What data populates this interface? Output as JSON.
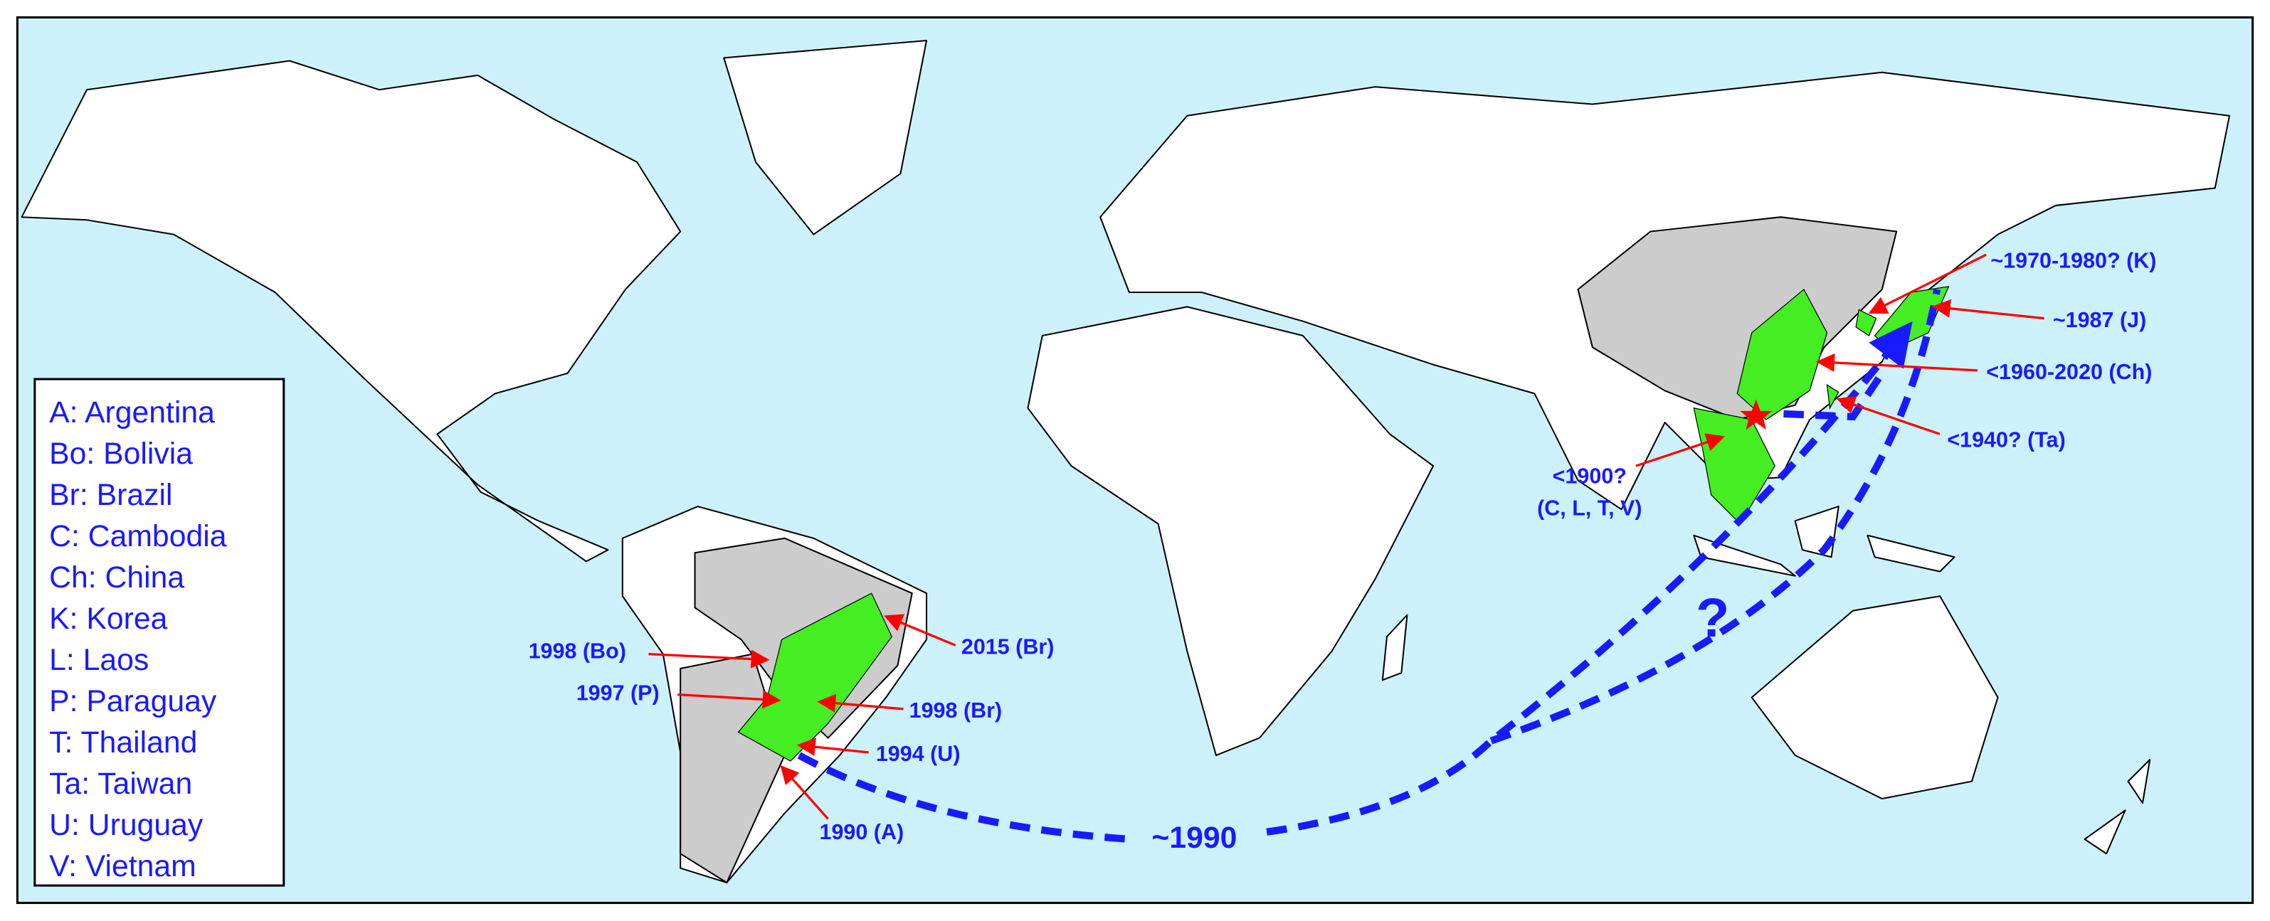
{
  "legend": [
    "A: Argentina",
    "Bo: Bolivia",
    "Br: Brazil",
    "C: Cambodia",
    "Ch: China",
    "K: Korea",
    "L: Laos",
    "P: Paraguay",
    "T: Thailand",
    "Ta: Taiwan",
    "U: Uruguay",
    "V: Vietnam"
  ],
  "annotations": [
    "~1970-1980? (K)",
    "~1987 (J)",
    "<1960-2020 (Ch)",
    "<1940? (Ta)",
    "<1900?",
    "(C, L, T, V)",
    "2015 (Br)",
    "1998 (Bo)",
    "1997 (P)",
    "1998 (Br)",
    "1994 (U)",
    "1990 (A)"
  ],
  "route_label": "~1990",
  "unknown_route": "?"
}
